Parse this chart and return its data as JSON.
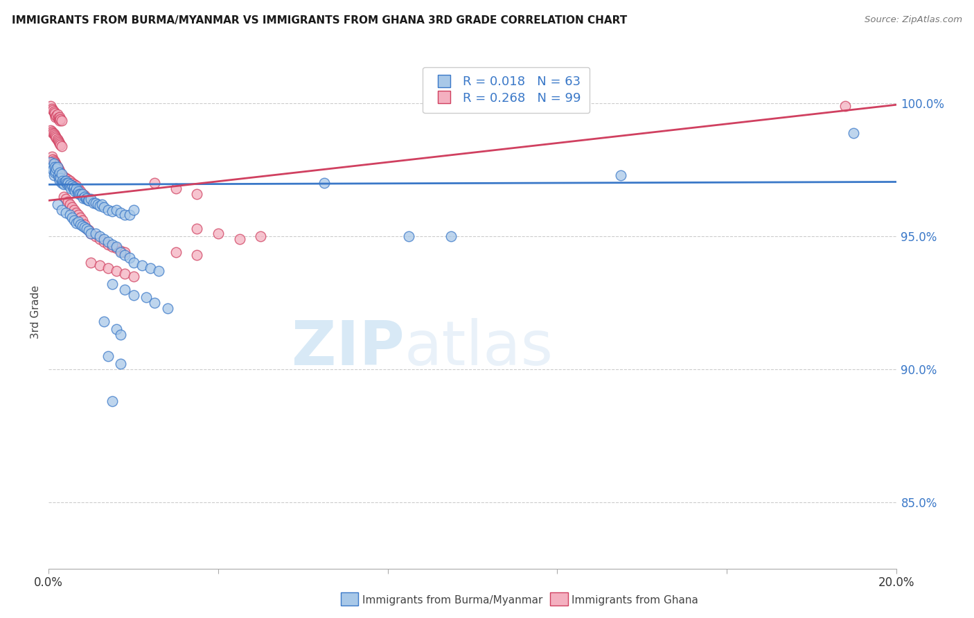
{
  "title": "IMMIGRANTS FROM BURMA/MYANMAR VS IMMIGRANTS FROM GHANA 3RD GRADE CORRELATION CHART",
  "source": "Source: ZipAtlas.com",
  "ylabel": "3rd Grade",
  "right_yticks": [
    0.85,
    0.9,
    0.95,
    1.0
  ],
  "right_yticklabels": [
    "85.0%",
    "90.0%",
    "95.0%",
    "100.0%"
  ],
  "xlim": [
    0.0,
    20.0
  ],
  "ylim": [
    0.825,
    1.018
  ],
  "legend_label1": "Immigrants from Burma/Myanmar",
  "legend_label2": "Immigrants from Ghana",
  "blue_color": "#a8c8e8",
  "pink_color": "#f4b0c0",
  "blue_line_color": "#3a78c8",
  "pink_line_color": "#d04060",
  "watermark_zip": "ZIP",
  "watermark_atlas": "atlas",
  "blue_line_y0": 0.9695,
  "blue_line_y1": 0.9705,
  "pink_line_y0": 0.9635,
  "pink_line_y1": 0.9995,
  "blue_scatter": [
    [
      0.05,
      0.978
    ],
    [
      0.08,
      0.976
    ],
    [
      0.1,
      0.975
    ],
    [
      0.12,
      0.9775
    ],
    [
      0.12,
      0.973
    ],
    [
      0.14,
      0.974
    ],
    [
      0.15,
      0.976
    ],
    [
      0.16,
      0.9745
    ],
    [
      0.18,
      0.9755
    ],
    [
      0.2,
      0.976
    ],
    [
      0.22,
      0.973
    ],
    [
      0.24,
      0.972
    ],
    [
      0.25,
      0.974
    ],
    [
      0.26,
      0.971
    ],
    [
      0.28,
      0.972
    ],
    [
      0.3,
      0.9735
    ],
    [
      0.3,
      0.97
    ],
    [
      0.32,
      0.971
    ],
    [
      0.34,
      0.97
    ],
    [
      0.36,
      0.9695
    ],
    [
      0.38,
      0.9705
    ],
    [
      0.4,
      0.971
    ],
    [
      0.42,
      0.97
    ],
    [
      0.44,
      0.9695
    ],
    [
      0.45,
      0.97
    ],
    [
      0.48,
      0.969
    ],
    [
      0.5,
      0.9695
    ],
    [
      0.52,
      0.968
    ],
    [
      0.55,
      0.969
    ],
    [
      0.58,
      0.968
    ],
    [
      0.6,
      0.9685
    ],
    [
      0.62,
      0.967
    ],
    [
      0.65,
      0.968
    ],
    [
      0.68,
      0.9665
    ],
    [
      0.7,
      0.967
    ],
    [
      0.72,
      0.966
    ],
    [
      0.75,
      0.966
    ],
    [
      0.78,
      0.9655
    ],
    [
      0.8,
      0.966
    ],
    [
      0.82,
      0.9645
    ],
    [
      0.85,
      0.965
    ],
    [
      0.88,
      0.964
    ],
    [
      0.9,
      0.9645
    ],
    [
      0.92,
      0.9635
    ],
    [
      0.95,
      0.9635
    ],
    [
      1.0,
      0.964
    ],
    [
      1.05,
      0.9625
    ],
    [
      1.1,
      0.9625
    ],
    [
      1.15,
      0.962
    ],
    [
      1.2,
      0.9615
    ],
    [
      1.25,
      0.962
    ],
    [
      1.3,
      0.961
    ],
    [
      1.4,
      0.96
    ],
    [
      1.5,
      0.9595
    ],
    [
      1.6,
      0.96
    ],
    [
      1.7,
      0.959
    ],
    [
      1.8,
      0.958
    ],
    [
      1.9,
      0.958
    ],
    [
      2.0,
      0.96
    ],
    [
      0.2,
      0.962
    ],
    [
      0.3,
      0.96
    ],
    [
      0.4,
      0.959
    ],
    [
      0.5,
      0.958
    ],
    [
      0.55,
      0.957
    ],
    [
      0.6,
      0.956
    ],
    [
      0.65,
      0.955
    ],
    [
      0.7,
      0.9555
    ],
    [
      0.75,
      0.9545
    ],
    [
      0.8,
      0.954
    ],
    [
      0.85,
      0.9535
    ],
    [
      0.9,
      0.953
    ],
    [
      0.95,
      0.952
    ],
    [
      1.0,
      0.951
    ],
    [
      1.1,
      0.951
    ],
    [
      1.2,
      0.95
    ],
    [
      1.3,
      0.949
    ],
    [
      1.4,
      0.948
    ],
    [
      1.5,
      0.947
    ],
    [
      1.6,
      0.946
    ],
    [
      1.7,
      0.944
    ],
    [
      1.8,
      0.943
    ],
    [
      1.9,
      0.942
    ],
    [
      2.0,
      0.94
    ],
    [
      2.2,
      0.939
    ],
    [
      2.4,
      0.938
    ],
    [
      2.6,
      0.937
    ],
    [
      1.5,
      0.932
    ],
    [
      1.8,
      0.93
    ],
    [
      2.0,
      0.928
    ],
    [
      2.3,
      0.927
    ],
    [
      2.5,
      0.925
    ],
    [
      2.8,
      0.923
    ],
    [
      1.3,
      0.918
    ],
    [
      1.6,
      0.915
    ],
    [
      1.7,
      0.913
    ],
    [
      1.4,
      0.905
    ],
    [
      1.7,
      0.902
    ],
    [
      1.5,
      0.888
    ],
    [
      6.5,
      0.97
    ],
    [
      8.5,
      0.95
    ],
    [
      9.5,
      0.95
    ],
    [
      13.5,
      0.973
    ],
    [
      19.0,
      0.989
    ]
  ],
  "pink_scatter": [
    [
      0.05,
      0.999
    ],
    [
      0.08,
      0.998
    ],
    [
      0.1,
      0.9975
    ],
    [
      0.12,
      0.997
    ],
    [
      0.14,
      0.996
    ],
    [
      0.15,
      0.9965
    ],
    [
      0.16,
      0.995
    ],
    [
      0.18,
      0.9955
    ],
    [
      0.2,
      0.996
    ],
    [
      0.22,
      0.9945
    ],
    [
      0.24,
      0.994
    ],
    [
      0.25,
      0.995
    ],
    [
      0.26,
      0.9935
    ],
    [
      0.28,
      0.994
    ],
    [
      0.3,
      0.9935
    ],
    [
      0.05,
      0.99
    ],
    [
      0.08,
      0.9895
    ],
    [
      0.1,
      0.989
    ],
    [
      0.12,
      0.9885
    ],
    [
      0.14,
      0.988
    ],
    [
      0.16,
      0.9875
    ],
    [
      0.18,
      0.987
    ],
    [
      0.2,
      0.9865
    ],
    [
      0.22,
      0.986
    ],
    [
      0.24,
      0.9855
    ],
    [
      0.26,
      0.985
    ],
    [
      0.28,
      0.9845
    ],
    [
      0.3,
      0.984
    ],
    [
      0.08,
      0.98
    ],
    [
      0.1,
      0.979
    ],
    [
      0.12,
      0.9785
    ],
    [
      0.14,
      0.978
    ],
    [
      0.16,
      0.9775
    ],
    [
      0.18,
      0.977
    ],
    [
      0.2,
      0.976
    ],
    [
      0.22,
      0.9755
    ],
    [
      0.24,
      0.975
    ],
    [
      0.26,
      0.9745
    ],
    [
      0.28,
      0.9735
    ],
    [
      0.3,
      0.973
    ],
    [
      0.35,
      0.9725
    ],
    [
      0.4,
      0.972
    ],
    [
      0.45,
      0.9715
    ],
    [
      0.5,
      0.971
    ],
    [
      0.55,
      0.97
    ],
    [
      0.6,
      0.9695
    ],
    [
      0.65,
      0.969
    ],
    [
      0.7,
      0.968
    ],
    [
      0.75,
      0.967
    ],
    [
      0.8,
      0.966
    ],
    [
      0.85,
      0.9655
    ],
    [
      0.9,
      0.9645
    ],
    [
      0.95,
      0.964
    ],
    [
      1.0,
      0.9635
    ],
    [
      0.35,
      0.965
    ],
    [
      0.4,
      0.964
    ],
    [
      0.45,
      0.963
    ],
    [
      0.5,
      0.962
    ],
    [
      0.55,
      0.961
    ],
    [
      0.6,
      0.96
    ],
    [
      0.65,
      0.959
    ],
    [
      0.7,
      0.958
    ],
    [
      0.75,
      0.957
    ],
    [
      0.8,
      0.956
    ],
    [
      0.85,
      0.9545
    ],
    [
      0.9,
      0.953
    ],
    [
      0.95,
      0.9525
    ],
    [
      1.0,
      0.951
    ],
    [
      1.1,
      0.95
    ],
    [
      1.2,
      0.949
    ],
    [
      1.3,
      0.948
    ],
    [
      1.4,
      0.947
    ],
    [
      1.5,
      0.946
    ],
    [
      1.6,
      0.9455
    ],
    [
      1.7,
      0.9445
    ],
    [
      1.8,
      0.944
    ],
    [
      1.0,
      0.94
    ],
    [
      1.2,
      0.939
    ],
    [
      1.4,
      0.938
    ],
    [
      1.6,
      0.937
    ],
    [
      1.8,
      0.936
    ],
    [
      2.0,
      0.935
    ],
    [
      2.5,
      0.97
    ],
    [
      3.0,
      0.968
    ],
    [
      3.5,
      0.966
    ],
    [
      3.5,
      0.953
    ],
    [
      4.0,
      0.951
    ],
    [
      3.0,
      0.944
    ],
    [
      3.5,
      0.943
    ],
    [
      4.5,
      0.949
    ],
    [
      5.0,
      0.95
    ],
    [
      18.8,
      0.999
    ]
  ]
}
